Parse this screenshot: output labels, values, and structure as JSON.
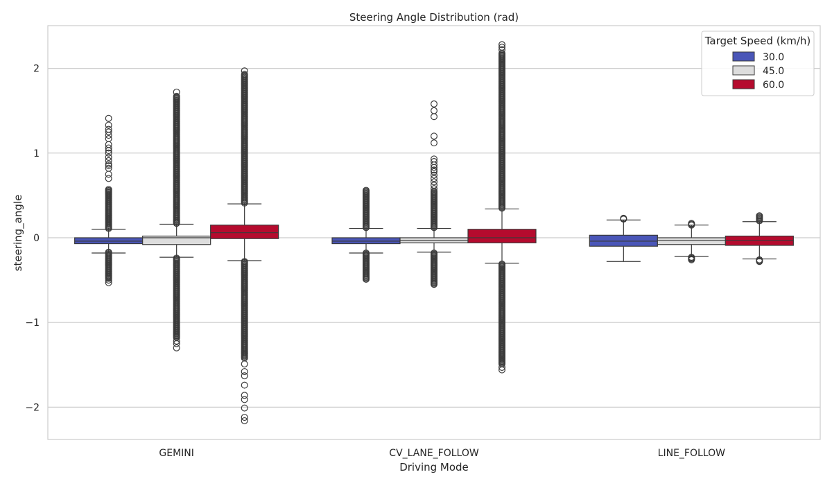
{
  "chart_data": {
    "type": "box",
    "title": "Steering Angle Distribution (rad)",
    "xlabel": "Driving Mode",
    "ylabel": "steering_angle",
    "ylim": [
      -2.4,
      2.5
    ],
    "yticks": [
      2,
      1,
      0,
      -1,
      -2
    ],
    "ytick_labels": [
      "2",
      "1",
      "0",
      "−1",
      "−2"
    ],
    "grid": true,
    "legend_position": "top-right",
    "legend_title": "Target Speed (km/h)",
    "categories": [
      "GEMINI",
      "CV_LANE_FOLLOW",
      "LINE_FOLLOW"
    ],
    "series": [
      {
        "name": "30.0",
        "color": "#4a56b8"
      },
      {
        "name": "45.0",
        "color": "#dddddd"
      },
      {
        "name": "60.0",
        "color": "#b50b2e"
      }
    ],
    "boxes": [
      {
        "category": "GEMINI",
        "series": "30.0",
        "whisker_low": -0.18,
        "q1": -0.07,
        "median": -0.04,
        "q3": 0.0,
        "whisker_high": 0.1,
        "outliers_high": {
          "dense_from": 0.11,
          "dense_to": 0.57,
          "sparse": [
            0.7,
            0.75,
            0.82,
            0.85,
            0.87,
            0.91,
            0.95,
            1.0,
            1.03,
            1.06,
            1.1,
            1.17,
            1.21,
            1.25,
            1.28,
            1.33,
            1.41
          ]
        },
        "outliers_low": {
          "dense_from": -0.17,
          "dense_to": -0.48,
          "sparse": [
            -0.5,
            -0.53
          ]
        }
      },
      {
        "category": "GEMINI",
        "series": "45.0",
        "whisker_low": -0.23,
        "q1": -0.08,
        "median": 0.0,
        "q3": 0.02,
        "whisker_high": 0.16,
        "outliers_high": {
          "dense_from": 0.17,
          "dense_to": 1.67,
          "sparse": [
            1.72
          ]
        },
        "outliers_low": {
          "dense_from": -0.24,
          "dense_to": -1.18,
          "sparse": [
            -1.22,
            -1.25,
            -1.3
          ]
        }
      },
      {
        "category": "GEMINI",
        "series": "60.0",
        "whisker_low": -0.27,
        "q1": -0.01,
        "median": 0.06,
        "q3": 0.15,
        "whisker_high": 0.4,
        "outliers_high": {
          "dense_from": 0.41,
          "dense_to": 1.93,
          "sparse": [
            1.97
          ]
        },
        "outliers_low": {
          "dense_from": -0.28,
          "dense_to": -1.42,
          "sparse": [
            -1.49,
            -1.58,
            -1.63,
            -1.74,
            -1.86,
            -1.91,
            -2.01,
            -2.12,
            -2.16
          ]
        }
      },
      {
        "category": "CV_LANE_FOLLOW",
        "series": "30.0",
        "whisker_low": -0.18,
        "q1": -0.07,
        "median": -0.04,
        "q3": 0.0,
        "whisker_high": 0.11,
        "outliers_high": {
          "dense_from": 0.12,
          "dense_to": 0.56,
          "sparse": []
        },
        "outliers_low": {
          "dense_from": -0.18,
          "dense_to": -0.49,
          "sparse": []
        }
      },
      {
        "category": "CV_LANE_FOLLOW",
        "series": "45.0",
        "whisker_low": -0.17,
        "q1": -0.06,
        "median": -0.03,
        "q3": 0.0,
        "whisker_high": 0.11,
        "outliers_high": {
          "dense_from": 0.12,
          "dense_to": 0.55,
          "sparse": [
            0.58,
            0.62,
            0.66,
            0.7,
            0.74,
            0.78,
            0.8,
            0.83,
            0.86,
            0.9,
            0.93,
            1.12,
            1.2,
            1.43,
            1.5,
            1.58
          ]
        },
        "outliers_low": {
          "dense_from": -0.18,
          "dense_to": -0.55,
          "sparse": []
        }
      },
      {
        "category": "CV_LANE_FOLLOW",
        "series": "60.0",
        "whisker_low": -0.3,
        "q1": -0.06,
        "median": 0.0,
        "q3": 0.1,
        "whisker_high": 0.34,
        "outliers_high": {
          "dense_from": 0.35,
          "dense_to": 2.18,
          "sparse": [
            2.22,
            2.25,
            2.28
          ]
        },
        "outliers_low": {
          "dense_from": -0.31,
          "dense_to": -1.49,
          "sparse": [
            -1.53,
            -1.56
          ]
        }
      },
      {
        "category": "LINE_FOLLOW",
        "series": "30.0",
        "whisker_low": -0.28,
        "q1": -0.1,
        "median": -0.04,
        "q3": 0.03,
        "whisker_high": 0.21,
        "outliers_high": {
          "dense_from": 0.22,
          "dense_to": 0.23,
          "sparse": []
        },
        "outliers_low": {
          "dense_from": 0,
          "dense_to": 0,
          "sparse": []
        }
      },
      {
        "category": "LINE_FOLLOW",
        "series": "45.0",
        "whisker_low": -0.22,
        "q1": -0.08,
        "median": -0.03,
        "q3": 0.0,
        "whisker_high": 0.15,
        "outliers_high": {
          "dense_from": 0.15,
          "dense_to": 0.17,
          "sparse": []
        },
        "outliers_low": {
          "dense_from": -0.23,
          "dense_to": -0.26,
          "sparse": []
        }
      },
      {
        "category": "LINE_FOLLOW",
        "series": "60.0",
        "whisker_low": -0.25,
        "q1": -0.09,
        "median": -0.03,
        "q3": 0.02,
        "whisker_high": 0.19,
        "outliers_high": {
          "dense_from": 0.2,
          "dense_to": 0.26,
          "sparse": []
        },
        "outliers_low": {
          "dense_from": -0.26,
          "dense_to": -0.28,
          "sparse": []
        }
      }
    ]
  }
}
